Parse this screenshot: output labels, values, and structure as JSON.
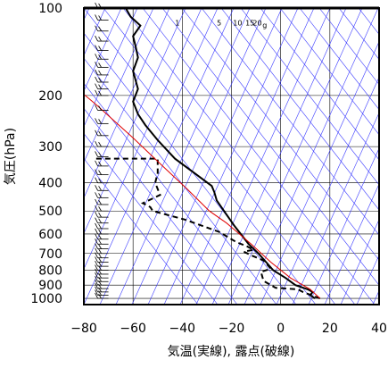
{
  "chart_data": {
    "type": "line",
    "xlabel": "気温(実線), 露点(破線)",
    "ylabel": "気圧(hPa)",
    "xlim": [
      -80,
      40
    ],
    "ylim": [
      1050,
      100
    ],
    "y_scale": "log",
    "x_ticks": [
      "−80",
      "−60",
      "−40",
      "−20",
      "0",
      "20",
      "40"
    ],
    "x_tick_values": [
      -80,
      -60,
      -40,
      -20,
      0,
      20,
      40
    ],
    "y_ticks": [
      "1000",
      "900",
      "800",
      "700",
      "600",
      "500",
      "400",
      "300",
      "200",
      "100"
    ],
    "y_tick_values": [
      1000,
      900,
      800,
      700,
      600,
      500,
      400,
      300,
      200,
      100
    ],
    "mixing_ratio_labels": [
      {
        "text": "1",
        "t": -42,
        "p": 115
      },
      {
        "text": "5",
        "t": -25,
        "p": 115
      },
      {
        "text": "10",
        "t": -17.5,
        "p": 115
      },
      {
        "text": "15",
        "t": -12.5,
        "p": 115
      },
      {
        "text": "20",
        "t": -9.5,
        "p": 115
      },
      {
        "text": "g",
        "t": -6.5,
        "p": 117
      }
    ],
    "series": [
      {
        "role": "temperature",
        "style": "solid",
        "points": [
          [
            14,
            1000
          ],
          [
            12,
            975
          ],
          [
            13,
            950
          ],
          [
            11,
            930
          ],
          [
            6,
            900
          ],
          [
            2,
            850
          ],
          [
            -3,
            800
          ],
          [
            -9,
            700
          ],
          [
            -13,
            650
          ],
          [
            -19,
            560
          ],
          [
            -26,
            460
          ],
          [
            -27,
            430
          ],
          [
            -28,
            410
          ],
          [
            -43,
            330
          ],
          [
            -50,
            285
          ],
          [
            -55,
            253
          ],
          [
            -58,
            232
          ],
          [
            -60,
            210
          ],
          [
            -58,
            190
          ],
          [
            -60,
            165
          ],
          [
            -58,
            148
          ],
          [
            -59,
            135
          ],
          [
            -60,
            125
          ],
          [
            -57,
            115
          ],
          [
            -61,
            107
          ],
          [
            -63,
            100
          ]
        ]
      },
      {
        "role": "dewpoint",
        "style": "dashed",
        "points": [
          [
            16,
            1000
          ],
          [
            9,
            950
          ],
          [
            7,
            930
          ],
          [
            -2,
            920
          ],
          [
            -7,
            870
          ],
          [
            -8,
            810
          ],
          [
            -4,
            790
          ],
          [
            -7,
            740
          ],
          [
            -12,
            710
          ],
          [
            -15,
            690
          ],
          [
            -11,
            680
          ],
          [
            -14,
            660
          ],
          [
            -18,
            640
          ],
          [
            -25,
            590
          ],
          [
            -39,
            535
          ],
          [
            -52,
            500
          ],
          [
            -53,
            485
          ],
          [
            -56,
            470
          ],
          [
            -49,
            440
          ],
          [
            -51,
            400
          ],
          [
            -50,
            370
          ],
          [
            -50,
            330
          ],
          [
            -75,
            330
          ]
        ]
      },
      {
        "role": "parcel",
        "style": "solid-red",
        "points": [
          [
            16,
            1000
          ],
          [
            12,
            930
          ],
          [
            4,
            850
          ],
          [
            -4,
            750
          ],
          [
            -12,
            650
          ],
          [
            -22,
            550
          ],
          [
            -29,
            500
          ],
          [
            -38,
            420
          ],
          [
            -48,
            350
          ],
          [
            -60,
            280
          ],
          [
            -75,
            215
          ],
          [
            -81,
            195
          ]
        ]
      }
    ],
    "wind_barbs": {
      "pressures": [
        1000,
        975,
        950,
        925,
        900,
        875,
        850,
        825,
        800,
        775,
        750,
        725,
        700,
        675,
        650,
        625,
        600,
        575,
        550,
        525,
        500,
        475,
        450,
        425,
        400,
        375,
        350,
        325,
        300,
        275,
        250,
        225,
        200,
        190,
        180,
        170,
        160,
        150,
        140,
        130,
        120,
        110,
        100
      ],
      "x_value": -70
    }
  }
}
